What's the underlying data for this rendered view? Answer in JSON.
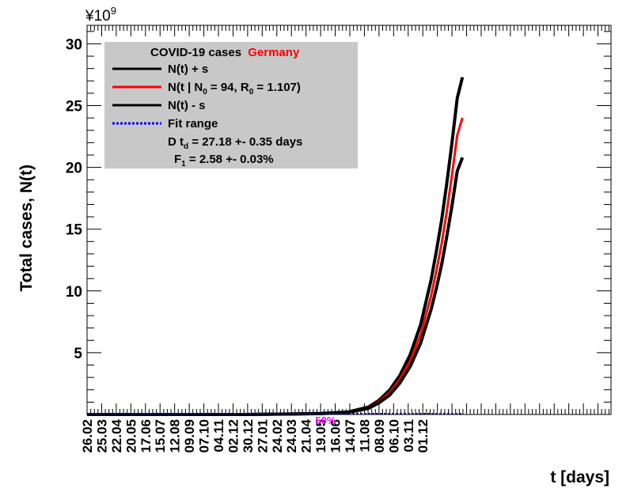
{
  "chart_data": {
    "type": "line",
    "multiplier_label": "¥10",
    "multiplier_exp": "9",
    "ylabel": "Total cases, N(t)",
    "xlabel": "t [days]",
    "ylim": [
      0,
      31.5
    ],
    "yticks": [
      {
        "value": 5,
        "label": "5"
      },
      {
        "value": 10,
        "label": "10"
      },
      {
        "value": 15,
        "label": "15"
      },
      {
        "value": 20,
        "label": "20"
      },
      {
        "value": 25,
        "label": "25"
      },
      {
        "value": 30,
        "label": "30"
      }
    ],
    "xlim": [
      0,
      1005
    ],
    "xticks": [
      {
        "value": 0,
        "label": "26.02"
      },
      {
        "value": 28,
        "label": "25.03"
      },
      {
        "value": 56,
        "label": "22.04"
      },
      {
        "value": 84,
        "label": "20.05"
      },
      {
        "value": 112,
        "label": "17.06"
      },
      {
        "value": 140,
        "label": "15.07"
      },
      {
        "value": 168,
        "label": "12.08"
      },
      {
        "value": 196,
        "label": "09.09"
      },
      {
        "value": 224,
        "label": "07.10"
      },
      {
        "value": 252,
        "label": "04.11"
      },
      {
        "value": 280,
        "label": "02.12"
      },
      {
        "value": 308,
        "label": "30.12"
      },
      {
        "value": 336,
        "label": "27.01"
      },
      {
        "value": 364,
        "label": "24.02"
      },
      {
        "value": 392,
        "label": "24.03"
      },
      {
        "value": 420,
        "label": "21.04"
      },
      {
        "value": 448,
        "label": "19.05"
      },
      {
        "value": 476,
        "label": "16.06"
      },
      {
        "value": 504,
        "label": "14.07"
      },
      {
        "value": 532,
        "label": "11.08"
      },
      {
        "value": 560,
        "label": "08.09"
      },
      {
        "value": 588,
        "label": "06.10"
      },
      {
        "value": 616,
        "label": "03.11"
      },
      {
        "value": 644,
        "label": "01.12"
      }
    ],
    "annotation": {
      "text": "50%",
      "x": 456,
      "color": "#ff00ff"
    },
    "series": [
      {
        "name": "N(t) + s",
        "color": "#000000",
        "x": [
          0,
          100,
          200,
          300,
          400,
          450,
          500,
          540,
          560,
          580,
          600,
          620,
          640,
          660,
          670,
          680,
          690,
          700,
          710,
          720
        ],
        "values": [
          0,
          0,
          0,
          0,
          0.05,
          0.09,
          0.2,
          0.6,
          1.15,
          1.95,
          3.15,
          4.85,
          7.3,
          10.9,
          13.2,
          15.7,
          18.7,
          22.0,
          25.6,
          27.3
        ]
      },
      {
        "name": "N(t | N0 = 94, R0 = 1.107)",
        "color": "#ff0000",
        "x": [
          0,
          100,
          200,
          300,
          400,
          450,
          500,
          540,
          560,
          580,
          600,
          620,
          640,
          660,
          670,
          680,
          690,
          700,
          710,
          720
        ],
        "values": [
          0,
          0,
          0,
          0,
          0.05,
          0.08,
          0.18,
          0.55,
          1.05,
          1.75,
          2.85,
          4.35,
          6.5,
          9.6,
          11.6,
          13.8,
          16.4,
          19.4,
          22.6,
          24.0
        ]
      },
      {
        "name": "N(t) - s",
        "color": "#000000",
        "x": [
          0,
          100,
          200,
          300,
          400,
          450,
          500,
          540,
          560,
          580,
          600,
          620,
          640,
          660,
          670,
          680,
          690,
          700,
          710,
          720
        ],
        "values": [
          0,
          0,
          0,
          0,
          0.04,
          0.07,
          0.16,
          0.5,
          0.95,
          1.55,
          2.55,
          3.9,
          5.8,
          8.5,
          10.2,
          12.1,
          14.4,
          16.9,
          19.7,
          20.8
        ]
      }
    ],
    "fit_range": {
      "name": "Fit range",
      "color": "#0000ff"
    },
    "legend": {
      "position": "top-left",
      "title": "COVID-19 cases",
      "country": "Germany",
      "entries": [
        {
          "label": "N(t) + s",
          "color": "#000000",
          "style": "solid"
        },
        {
          "label": "N(t | N",
          "sub": "0",
          "label2": " =   94, R",
          "sub2": "0",
          "label3": " =  1.107)",
          "color": "#ff0000",
          "style": "solid"
        },
        {
          "label": "N(t) - s",
          "color": "#000000",
          "style": "solid"
        },
        {
          "label": "Fit range",
          "color": "#0000ff",
          "style": "dotted"
        }
      ],
      "doubling_time": {
        "prefix": "D t",
        "sub": "d",
        "text": " = 27.18 +- 0.35 days"
      },
      "f1": {
        "prefix": "F",
        "sub": "1",
        "text": " =  2.58 +- 0.03%"
      }
    }
  }
}
